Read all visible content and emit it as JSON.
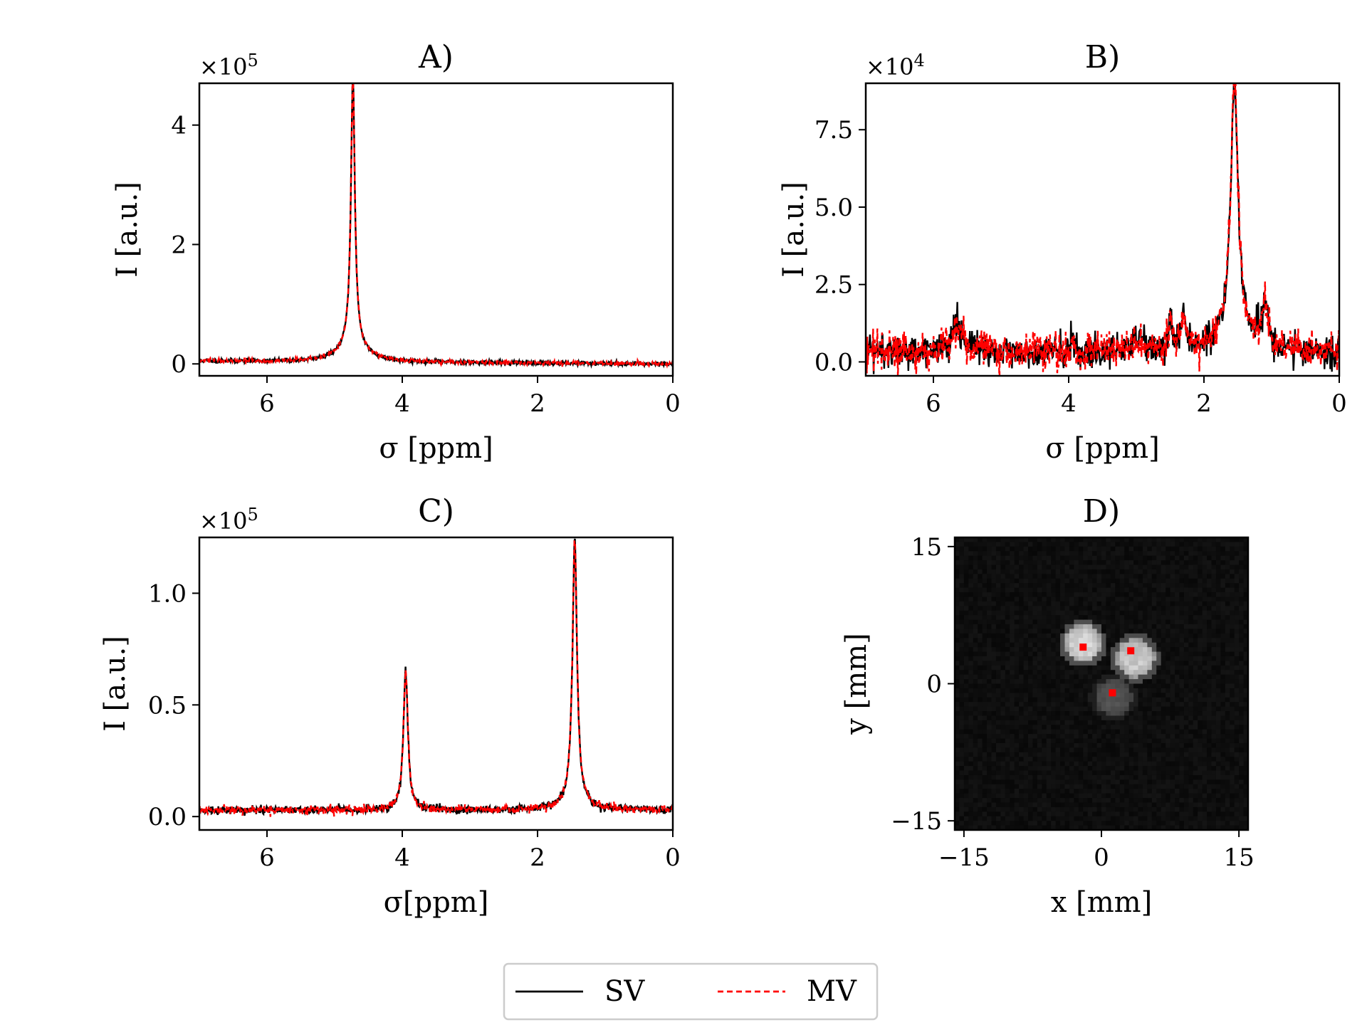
{
  "figure": {
    "legend": {
      "placement": "bottom-center",
      "entries": [
        {
          "label": "SV",
          "color": "#000000",
          "style": "solid"
        },
        {
          "label": "MV",
          "color": "#ff0000",
          "style": "dashed"
        }
      ]
    }
  },
  "chart_data": [
    {
      "id": "A",
      "type": "line",
      "title": "A)",
      "xlabel": "σ [ppm]",
      "ylabel": "I [a.u.]",
      "xlim": [
        7,
        0
      ],
      "xreversed": true,
      "ylim": [
        -0.2,
        4.7
      ],
      "y_multiplier": "×10",
      "y_multiplier_exp": "5",
      "xticks": [
        6,
        4,
        2,
        0
      ],
      "xtick_labels": [
        "6",
        "4",
        "2",
        "0"
      ],
      "yticks": [
        0,
        2,
        4
      ],
      "ytick_labels": [
        "0",
        "2",
        "4"
      ],
      "noise": 0.018,
      "peaks": [
        {
          "center": 4.73,
          "amplitude": 4.45,
          "width": 0.035,
          "broad_amplitude": 0.3,
          "broad_width": 0.22
        }
      ],
      "baseline_left": 0.05,
      "baseline_right": 0.0,
      "series": [
        {
          "name": "SV",
          "color": "#000000"
        },
        {
          "name": "MV",
          "color": "#ff0000"
        }
      ]
    },
    {
      "id": "B",
      "type": "line",
      "title": "B)",
      "xlabel": "σ [ppm]",
      "ylabel": "I [a.u.]",
      "xlim": [
        7,
        0
      ],
      "xreversed": true,
      "ylim": [
        -0.45,
        9.0
      ],
      "y_multiplier": "×10",
      "y_multiplier_exp": "4",
      "xticks": [
        6,
        4,
        2,
        0
      ],
      "xtick_labels": [
        "6",
        "4",
        "2",
        "0"
      ],
      "yticks": [
        0,
        2.5,
        5.0,
        7.5
      ],
      "ytick_labels": [
        "0.0",
        "2.5",
        "5.0",
        "7.5"
      ],
      "noise": 0.28,
      "peaks": [
        {
          "center": 1.55,
          "amplitude": 8.0,
          "width": 0.06,
          "broad_amplitude": 1.0,
          "broad_width": 0.2
        },
        {
          "center": 5.65,
          "amplitude": 0.9,
          "width": 0.08
        },
        {
          "center": 2.3,
          "amplitude": 1.1,
          "width": 0.04
        },
        {
          "center": 2.5,
          "amplitude": 0.9,
          "width": 0.04
        },
        {
          "center": 1.1,
          "amplitude": 1.4,
          "width": 0.05
        },
        {
          "center": 3.0,
          "amplitude": 0.3,
          "width": 0.15
        }
      ],
      "baseline_left": 0.35,
      "baseline_right": 0.3,
      "series": [
        {
          "name": "SV",
          "color": "#000000"
        },
        {
          "name": "MV",
          "color": "#ff0000"
        }
      ]
    },
    {
      "id": "C",
      "type": "line",
      "title": "C)",
      "xlabel": "σ[ppm]",
      "ylabel": "I [a.u.]",
      "xlim": [
        7,
        0
      ],
      "xreversed": true,
      "ylim": [
        -0.06,
        1.25
      ],
      "y_multiplier": "×10",
      "y_multiplier_exp": "5",
      "xticks": [
        6,
        4,
        2,
        0
      ],
      "xtick_labels": [
        "6",
        "4",
        "2",
        "0"
      ],
      "yticks": [
        0,
        0.5,
        1.0
      ],
      "ytick_labels": [
        "0.0",
        "0.5",
        "1.0"
      ],
      "noise": 0.009,
      "peaks": [
        {
          "center": 3.95,
          "amplitude": 0.62,
          "width": 0.04
        },
        {
          "center": 1.45,
          "amplitude": 1.16,
          "width": 0.04,
          "broad_amplitude": 0.05,
          "broad_width": 0.15
        }
      ],
      "baseline_left": 0.03,
      "baseline_right": 0.03,
      "series": [
        {
          "name": "SV",
          "color": "#000000"
        },
        {
          "name": "MV",
          "color": "#ff0000"
        }
      ]
    },
    {
      "id": "D",
      "type": "heatmap",
      "title": "D)",
      "xlabel": "x [mm]",
      "ylabel": "y [mm]",
      "xlim": [
        -16,
        16
      ],
      "ylim": [
        -16,
        16
      ],
      "xticks": [
        -15,
        0,
        15
      ],
      "xtick_labels": [
        "−15",
        "0",
        "15"
      ],
      "yticks": [
        -15,
        0,
        15
      ],
      "ytick_labels": [
        "−15",
        "0",
        "15"
      ],
      "grid_size": 64,
      "blobs": [
        {
          "x": -2.0,
          "y": 4.4,
          "radius": 2.0,
          "intensity": 0.9
        },
        {
          "x": 3.7,
          "y": 2.8,
          "radius": 2.1,
          "intensity": 0.85
        },
        {
          "x": 1.3,
          "y": -1.5,
          "radius": 2.0,
          "intensity": 0.35
        }
      ],
      "markers": [
        {
          "x": -2.0,
          "y": 4.0,
          "color": "#ff0000"
        },
        {
          "x": 3.2,
          "y": 3.6,
          "color": "#ff0000"
        },
        {
          "x": 1.2,
          "y": -1.0,
          "color": "#ff0000"
        }
      ]
    }
  ]
}
